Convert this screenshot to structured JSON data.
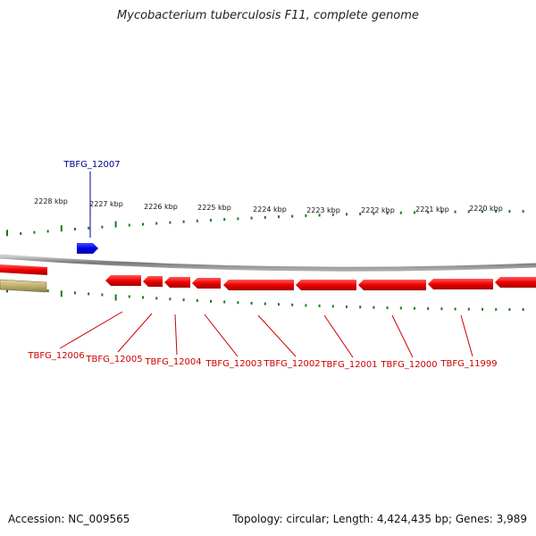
{
  "title": "Mycobacterium tuberculosis F11, complete genome",
  "footer": {
    "accession": "Accession: NC_009565",
    "summary": "Topology: circular; Length: 4,424,435 bp; Genes: 3,989"
  },
  "ruler_labels": [
    "2228 kbp",
    "2227 kbp",
    "2226 kbp",
    "2225 kbp",
    "2224 kbp",
    "2223 kbp",
    "2222 kbp",
    "2221 kbp",
    "2220 kbp"
  ],
  "forward_genes": [
    {
      "label": "TBFG_12007",
      "color": "#0000ff"
    }
  ],
  "reverse_genes": [
    {
      "label": "TBFG_12006",
      "color": "#ff0000"
    },
    {
      "label": "TBFG_12005",
      "color": "#ff0000"
    },
    {
      "label": "TBFG_12004",
      "color": "#ff0000"
    },
    {
      "label": "TBFG_12003",
      "color": "#ff0000"
    },
    {
      "label": "TBFG_12002",
      "color": "#ff0000"
    },
    {
      "label": "TBFG_12001",
      "color": "#ff0000"
    },
    {
      "label": "TBFG_12000",
      "color": "#ff0000"
    },
    {
      "label": "TBFG_11999",
      "color": "#ff0000"
    }
  ],
  "colors": {
    "forward_gene": "#0000ff",
    "reverse_gene": "#ff0000",
    "other_feature": "#c8b878",
    "tick": "#1a7a1a",
    "backbone": "#888888",
    "forward_label": "#00008b",
    "reverse_label": "#cc0000"
  }
}
